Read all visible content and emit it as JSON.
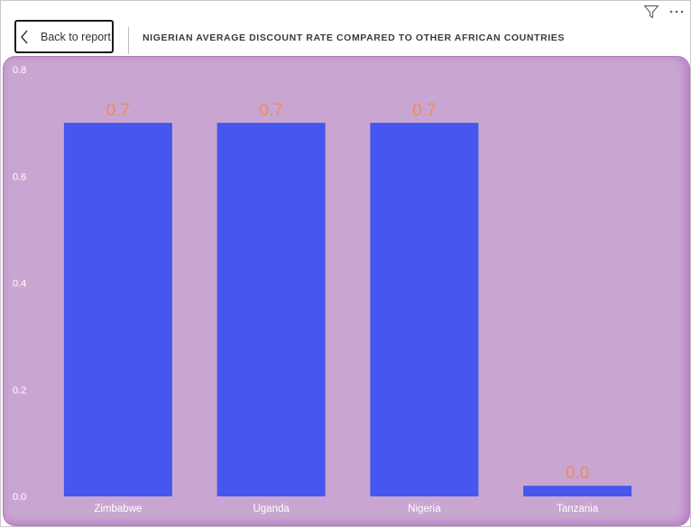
{
  "header": {
    "back_label": "Back to report",
    "title": "NIGERIAN AVERAGE DISCOUNT RATE COMPARED TO OTHER AFRICAN COUNTRIES",
    "tools": [
      {
        "name": "filter-icon"
      },
      {
        "name": "more-options-icon"
      }
    ]
  },
  "colors": {
    "plot_background": "#c9a6d1",
    "bar": "#4557ee",
    "data_label": "#f08a5d",
    "axis_text": "#ffffff"
  },
  "chart_data": {
    "type": "bar",
    "title": "NIGERIAN AVERAGE DISCOUNT RATE COMPARED TO OTHER AFRICAN COUNTRIES",
    "categories": [
      "Zimbabwe",
      "Uganda",
      "Nigeria",
      "Tanzania"
    ],
    "values": [
      0.7,
      0.7,
      0.7,
      0.02
    ],
    "data_labels": [
      "0.7",
      "0.7",
      "0.7",
      "0.0"
    ],
    "ylim": [
      0,
      0.8
    ],
    "yticks": [
      0.0,
      0.2,
      0.4,
      0.6,
      0.8
    ],
    "ytick_labels": [
      "0.0",
      "0.2",
      "0.4",
      "0.6",
      "0.8"
    ],
    "xlabel": "",
    "ylabel": "",
    "grid": false,
    "legend": "none"
  }
}
